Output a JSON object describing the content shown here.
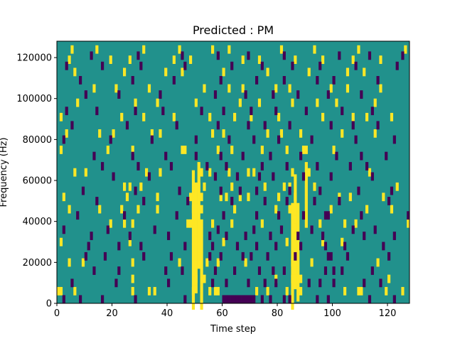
{
  "chart_data": {
    "type": "heatmap",
    "title": "Predicted : PM",
    "xlabel": "Time step",
    "ylabel": "Frequency (Hz)",
    "xlim": [
      0,
      128
    ],
    "ylim": [
      0,
      128000
    ],
    "x_ticks": [
      0,
      20,
      40,
      60,
      80,
      100,
      120
    ],
    "y_ticks": [
      0,
      20000,
      40000,
      60000,
      80000,
      100000,
      120000
    ],
    "n_time_steps": 128,
    "n_freq_bins": 128,
    "colormap": "viridis",
    "levels": {
      "low": "#440154",
      "mid": "#21918c",
      "high": "#fde725"
    },
    "background_level": "mid",
    "high_cells": [
      [
        0,
        7
      ],
      [
        1,
        7
      ],
      [
        6,
        7
      ],
      [
        27,
        7
      ],
      [
        33,
        7
      ],
      [
        35,
        7
      ],
      [
        49,
        7
      ],
      [
        55,
        7
      ],
      [
        57,
        7
      ],
      [
        58,
        7
      ],
      [
        72,
        7
      ],
      [
        76,
        7
      ],
      [
        83,
        7
      ],
      [
        88,
        7
      ],
      [
        104,
        7
      ],
      [
        109,
        7
      ],
      [
        110,
        7
      ],
      [
        119,
        7
      ],
      [
        125,
        7
      ],
      [
        27,
        13
      ],
      [
        50,
        13
      ],
      [
        53,
        13
      ],
      [
        79,
        13
      ],
      [
        85,
        13
      ],
      [
        86,
        13
      ],
      [
        87,
        13
      ],
      [
        88,
        13
      ],
      [
        120,
        13
      ],
      [
        4,
        21
      ],
      [
        9,
        21
      ],
      [
        27,
        21
      ],
      [
        44,
        21
      ],
      [
        54,
        21
      ],
      [
        58,
        21
      ],
      [
        68,
        21
      ],
      [
        85,
        21
      ],
      [
        92,
        21
      ],
      [
        116,
        21
      ],
      [
        1,
        31
      ],
      [
        26,
        31
      ],
      [
        51,
        31
      ],
      [
        60,
        31
      ],
      [
        83,
        31
      ],
      [
        96,
        31
      ],
      [
        103,
        31
      ],
      [
        19,
        40
      ],
      [
        24,
        40
      ],
      [
        27,
        40
      ],
      [
        47,
        40
      ],
      [
        48,
        40
      ],
      [
        56,
        40
      ],
      [
        63,
        40
      ],
      [
        74,
        40
      ],
      [
        95,
        40
      ],
      [
        104,
        40
      ],
      [
        108,
        40
      ],
      [
        127,
        40
      ],
      [
        4,
        47
      ],
      [
        15,
        47
      ],
      [
        23,
        47
      ],
      [
        29,
        47
      ],
      [
        36,
        47
      ],
      [
        49,
        47
      ],
      [
        50,
        47
      ],
      [
        51,
        47
      ],
      [
        52,
        47
      ],
      [
        64,
        47
      ],
      [
        79,
        47
      ],
      [
        84,
        47
      ],
      [
        85,
        47
      ],
      [
        99,
        47
      ],
      [
        112,
        47
      ],
      [
        121,
        47
      ],
      [
        2,
        53
      ],
      [
        25,
        53
      ],
      [
        36,
        53
      ],
      [
        48,
        53
      ],
      [
        52,
        53
      ],
      [
        59,
        53
      ],
      [
        61,
        53
      ],
      [
        66,
        53
      ],
      [
        69,
        53
      ],
      [
        80,
        53
      ],
      [
        86,
        53
      ],
      [
        102,
        53
      ],
      [
        106,
        53
      ],
      [
        118,
        53
      ],
      [
        24,
        58
      ],
      [
        26,
        58
      ],
      [
        30,
        58
      ],
      [
        50,
        58
      ],
      [
        51,
        58
      ],
      [
        53,
        58
      ],
      [
        63,
        58
      ],
      [
        75,
        58
      ],
      [
        82,
        58
      ],
      [
        84,
        58
      ],
      [
        93,
        58
      ],
      [
        123,
        58
      ],
      [
        6,
        65
      ],
      [
        10,
        65
      ],
      [
        32,
        65
      ],
      [
        37,
        65
      ],
      [
        52,
        65
      ],
      [
        55,
        65
      ],
      [
        62,
        65
      ],
      [
        69,
        65
      ],
      [
        71,
        65
      ],
      [
        85,
        65
      ],
      [
        91,
        65
      ],
      [
        113,
        65
      ],
      [
        1,
        76
      ],
      [
        18,
        76
      ],
      [
        27,
        76
      ],
      [
        45,
        76
      ],
      [
        46,
        76
      ],
      [
        58,
        76
      ],
      [
        63,
        76
      ],
      [
        74,
        76
      ],
      [
        83,
        76
      ],
      [
        89,
        76
      ],
      [
        90,
        76
      ],
      [
        100,
        76
      ],
      [
        3,
        84
      ],
      [
        15,
        84
      ],
      [
        20,
        84
      ],
      [
        34,
        84
      ],
      [
        37,
        84
      ],
      [
        56,
        84
      ],
      [
        60,
        84
      ],
      [
        76,
        84
      ],
      [
        81,
        84
      ],
      [
        88,
        84
      ],
      [
        103,
        84
      ],
      [
        115,
        84
      ],
      [
        1,
        92
      ],
      [
        23,
        92
      ],
      [
        31,
        92
      ],
      [
        42,
        92
      ],
      [
        55,
        92
      ],
      [
        64,
        92
      ],
      [
        70,
        92
      ],
      [
        80,
        92
      ],
      [
        96,
        92
      ],
      [
        107,
        92
      ],
      [
        112,
        92
      ],
      [
        121,
        92
      ],
      [
        7,
        99
      ],
      [
        28,
        99
      ],
      [
        36,
        99
      ],
      [
        50,
        99
      ],
      [
        66,
        99
      ],
      [
        73,
        99
      ],
      [
        85,
        99
      ],
      [
        94,
        99
      ],
      [
        101,
        99
      ],
      [
        115,
        99
      ],
      [
        13,
        106
      ],
      [
        21,
        106
      ],
      [
        33,
        106
      ],
      [
        53,
        106
      ],
      [
        62,
        106
      ],
      [
        67,
        106
      ],
      [
        79,
        106
      ],
      [
        84,
        106
      ],
      [
        99,
        106
      ],
      [
        105,
        106
      ],
      [
        117,
        106
      ],
      [
        6,
        114
      ],
      [
        24,
        114
      ],
      [
        39,
        114
      ],
      [
        45,
        114
      ],
      [
        60,
        114
      ],
      [
        76,
        114
      ],
      [
        91,
        114
      ],
      [
        105,
        114
      ],
      [
        111,
        114
      ],
      [
        4,
        120
      ],
      [
        19,
        120
      ],
      [
        26,
        120
      ],
      [
        42,
        120
      ],
      [
        48,
        120
      ],
      [
        67,
        120
      ],
      [
        73,
        120
      ],
      [
        86,
        120
      ],
      [
        96,
        120
      ],
      [
        107,
        120
      ],
      [
        117,
        120
      ],
      [
        5,
        125
      ],
      [
        14,
        125
      ],
      [
        31,
        125
      ],
      [
        44,
        125
      ],
      [
        56,
        125
      ],
      [
        62,
        125
      ],
      [
        81,
        125
      ],
      [
        93,
        125
      ],
      [
        109,
        125
      ],
      [
        126,
        125
      ]
    ],
    "high_bands": [
      {
        "col": 49,
        "rows": [
          0,
          64
        ]
      },
      {
        "col": 50,
        "rows": [
          8,
          56
        ]
      },
      {
        "col": 51,
        "rows": [
          20,
          70
        ]
      },
      {
        "col": 52,
        "rows": [
          0,
          40
        ]
      },
      {
        "col": 85,
        "rows": [
          0,
          50
        ]
      },
      {
        "col": 86,
        "rows": [
          10,
          62
        ]
      },
      {
        "col": 87,
        "rows": [
          4,
          48
        ]
      },
      {
        "col": 90,
        "rows": [
          40,
          70
        ]
      }
    ],
    "low_cells": [
      [
        2,
        3
      ],
      [
        8,
        3
      ],
      [
        16,
        3
      ],
      [
        28,
        3
      ],
      [
        46,
        3
      ],
      [
        60,
        3
      ],
      [
        61,
        3
      ],
      [
        62,
        3
      ],
      [
        63,
        3
      ],
      [
        64,
        3
      ],
      [
        65,
        3
      ],
      [
        66,
        3
      ],
      [
        67,
        3
      ],
      [
        68,
        3
      ],
      [
        69,
        3
      ],
      [
        70,
        3
      ],
      [
        71,
        3
      ],
      [
        74,
        3
      ],
      [
        77,
        3
      ],
      [
        82,
        3
      ],
      [
        84,
        3
      ],
      [
        94,
        3
      ],
      [
        98,
        3
      ],
      [
        113,
        3
      ],
      [
        122,
        3
      ],
      [
        5,
        11
      ],
      [
        21,
        11
      ],
      [
        40,
        11
      ],
      [
        56,
        11
      ],
      [
        61,
        11
      ],
      [
        69,
        11
      ],
      [
        75,
        11
      ],
      [
        79,
        11
      ],
      [
        91,
        11
      ],
      [
        95,
        11
      ],
      [
        100,
        11
      ],
      [
        111,
        11
      ],
      [
        117,
        11
      ],
      [
        13,
        17
      ],
      [
        22,
        17
      ],
      [
        39,
        17
      ],
      [
        45,
        17
      ],
      [
        57,
        17
      ],
      [
        64,
        17
      ],
      [
        73,
        17
      ],
      [
        78,
        17
      ],
      [
        82,
        17
      ],
      [
        97,
        17
      ],
      [
        100,
        17
      ],
      [
        103,
        17
      ],
      [
        114,
        17
      ],
      [
        10,
        24
      ],
      [
        17,
        24
      ],
      [
        31,
        24
      ],
      [
        41,
        24
      ],
      [
        55,
        24
      ],
      [
        59,
        24
      ],
      [
        67,
        24
      ],
      [
        70,
        24
      ],
      [
        76,
        24
      ],
      [
        86,
        24
      ],
      [
        98,
        24
      ],
      [
        99,
        24
      ],
      [
        105,
        24
      ],
      [
        120,
        24
      ],
      [
        11,
        29
      ],
      [
        22,
        29
      ],
      [
        30,
        29
      ],
      [
        46,
        29
      ],
      [
        56,
        29
      ],
      [
        65,
        29
      ],
      [
        72,
        29
      ],
      [
        79,
        29
      ],
      [
        88,
        29
      ],
      [
        97,
        29
      ],
      [
        104,
        29
      ],
      [
        118,
        29
      ],
      [
        12,
        34
      ],
      [
        26,
        34
      ],
      [
        40,
        34
      ],
      [
        55,
        34
      ],
      [
        61,
        34
      ],
      [
        68,
        34
      ],
      [
        77,
        34
      ],
      [
        87,
        34
      ],
      [
        96,
        34
      ],
      [
        111,
        34
      ],
      [
        122,
        34
      ],
      [
        2,
        37
      ],
      [
        18,
        37
      ],
      [
        35,
        37
      ],
      [
        58,
        37
      ],
      [
        71,
        37
      ],
      [
        81,
        37
      ],
      [
        92,
        37
      ],
      [
        107,
        37
      ],
      [
        115,
        37
      ],
      [
        7,
        44
      ],
      [
        24,
        44
      ],
      [
        43,
        44
      ],
      [
        60,
        44
      ],
      [
        72,
        44
      ],
      [
        80,
        44
      ],
      [
        89,
        44
      ],
      [
        97,
        44
      ],
      [
        98,
        44
      ],
      [
        110,
        44
      ],
      [
        127,
        44
      ],
      [
        14,
        51
      ],
      [
        31,
        51
      ],
      [
        47,
        51
      ],
      [
        63,
        51
      ],
      [
        75,
        51
      ],
      [
        83,
        51
      ],
      [
        93,
        51
      ],
      [
        102,
        51
      ],
      [
        120,
        51
      ],
      [
        9,
        56
      ],
      [
        28,
        56
      ],
      [
        44,
        56
      ],
      [
        59,
        56
      ],
      [
        66,
        56
      ],
      [
        72,
        56
      ],
      [
        84,
        56
      ],
      [
        95,
        56
      ],
      [
        109,
        56
      ],
      [
        121,
        56
      ],
      [
        20,
        63
      ],
      [
        33,
        63
      ],
      [
        57,
        63
      ],
      [
        65,
        63
      ],
      [
        73,
        63
      ],
      [
        78,
        63
      ],
      [
        89,
        63
      ],
      [
        99,
        63
      ],
      [
        114,
        63
      ],
      [
        16,
        68
      ],
      [
        29,
        68
      ],
      [
        41,
        68
      ],
      [
        54,
        68
      ],
      [
        61,
        68
      ],
      [
        74,
        68
      ],
      [
        83,
        68
      ],
      [
        94,
        68
      ],
      [
        106,
        68
      ],
      [
        112,
        68
      ],
      [
        13,
        73
      ],
      [
        27,
        73
      ],
      [
        39,
        73
      ],
      [
        50,
        73
      ],
      [
        59,
        73
      ],
      [
        67,
        73
      ],
      [
        77,
        73
      ],
      [
        88,
        73
      ],
      [
        101,
        73
      ],
      [
        110,
        73
      ],
      [
        119,
        73
      ],
      [
        2,
        81
      ],
      [
        19,
        81
      ],
      [
        34,
        81
      ],
      [
        50,
        81
      ],
      [
        62,
        81
      ],
      [
        71,
        81
      ],
      [
        80,
        81
      ],
      [
        92,
        81
      ],
      [
        108,
        81
      ],
      [
        122,
        81
      ],
      [
        5,
        88
      ],
      [
        25,
        88
      ],
      [
        43,
        88
      ],
      [
        58,
        88
      ],
      [
        69,
        88
      ],
      [
        75,
        88
      ],
      [
        84,
        88
      ],
      [
        99,
        88
      ],
      [
        107,
        88
      ],
      [
        116,
        88
      ],
      [
        3,
        95
      ],
      [
        14,
        95
      ],
      [
        28,
        95
      ],
      [
        38,
        95
      ],
      [
        52,
        95
      ],
      [
        60,
        95
      ],
      [
        70,
        95
      ],
      [
        79,
        95
      ],
      [
        90,
        95
      ],
      [
        103,
        95
      ],
      [
        114,
        95
      ],
      [
        10,
        103
      ],
      [
        22,
        103
      ],
      [
        37,
        103
      ],
      [
        57,
        103
      ],
      [
        68,
        103
      ],
      [
        78,
        103
      ],
      [
        87,
        103
      ],
      [
        98,
        103
      ],
      [
        110,
        103
      ],
      [
        8,
        110
      ],
      [
        27,
        110
      ],
      [
        42,
        110
      ],
      [
        59,
        110
      ],
      [
        72,
        110
      ],
      [
        82,
        110
      ],
      [
        94,
        110
      ],
      [
        100,
        110
      ],
      [
        116,
        110
      ],
      [
        3,
        117
      ],
      [
        16,
        117
      ],
      [
        30,
        117
      ],
      [
        46,
        117
      ],
      [
        63,
        117
      ],
      [
        74,
        117
      ],
      [
        85,
        117
      ],
      [
        95,
        117
      ],
      [
        108,
        117
      ],
      [
        123,
        117
      ],
      [
        12,
        122
      ],
      [
        29,
        122
      ],
      [
        45,
        122
      ],
      [
        58,
        122
      ],
      [
        69,
        122
      ],
      [
        82,
        122
      ],
      [
        102,
        122
      ],
      [
        113,
        122
      ],
      [
        125,
        122
      ]
    ]
  }
}
